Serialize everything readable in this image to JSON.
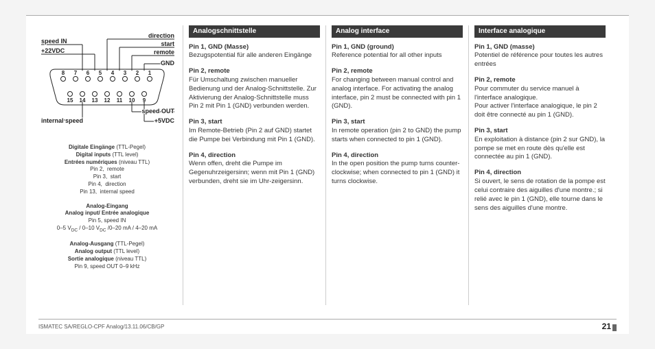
{
  "footer": {
    "ref": "ISMATEC SA/REGLO-CPF Analog/13.11.06/CB/GP",
    "page": "21"
  },
  "diagram": {
    "labels": {
      "speed_in": "speed IN",
      "v22": "+22VDC",
      "direction": "direction",
      "start": "start",
      "remote": "remote",
      "gnd": "GND",
      "speed_out": "speed OUT",
      "v5": "+5VDC",
      "internal_speed": "internal speed"
    },
    "top_pins": [
      "8",
      "7",
      "6",
      "5",
      "4",
      "3",
      "2",
      "1"
    ],
    "bottom_pins": [
      "15",
      "14",
      "13",
      "12",
      "11",
      "10",
      "9"
    ]
  },
  "legend": {
    "digital": {
      "de": "Digitale Eingänge",
      "en": "Digital inputs",
      "fr": "Entrées numériques",
      "de_suffix": "(TTL-Pegel)",
      "en_suffix": "(TTL level)",
      "fr_suffix": "(niveau TTL)",
      "rows": [
        {
          "pin": "Pin 2,",
          "label": "remote"
        },
        {
          "pin": "Pin 3,",
          "label": "start"
        },
        {
          "pin": "Pin 4,",
          "label": "direction"
        },
        {
          "pin": "Pin 13,",
          "label": "internal speed"
        }
      ]
    },
    "analog_in": {
      "de": "Analog-Eingang",
      "en": "Analog input/ Entrée analogique",
      "pin": "Pin 5, speed IN",
      "range": "0–5 V",
      "range2": " / 0–10 V",
      "range3": " /0–20 mA / 4–20 mA",
      "dc": "DC"
    },
    "analog_out": {
      "de": "Analog-Ausgang",
      "en": "Analog output",
      "fr": "Sortie analogique",
      "de_suffix": "(TTL-Pegel)",
      "en_suffix": "(TTL level)",
      "fr_suffix": "(niveau TTL)",
      "pin": "Pin 9, speed OUT 0–9 kHz"
    }
  },
  "columns": [
    {
      "heading": "Analogschnittstelle",
      "pins": [
        {
          "title": "Pin 1, GND (Masse)",
          "body": "Bezugspotential für alle anderen Eingänge"
        },
        {
          "title": "Pin 2, remote",
          "body": "Für Umschaltung zwischen manueller Bedienung und der Analog-Schnittstelle. Zur Aktivierung der Analog-Schnittstelle muss Pin 2 mit Pin 1 (GND) verbunden werden."
        },
        {
          "title": "Pin 3, start",
          "body": "Im Remote-Betrieb (Pin 2 auf GND) startet die Pumpe bei Verbindung mit Pin 1 (GND)."
        },
        {
          "title": "Pin 4, direction",
          "body": "Wenn offen, dreht die Pumpe im Gegenuhrzeigersinn; wenn mit Pin 1 (GND) verbunden, dreht sie im Uhr-zeigersinn."
        }
      ]
    },
    {
      "heading": "Analog interface",
      "pins": [
        {
          "title": "Pin 1, GND (ground)",
          "body": "Reference potential for all other inputs"
        },
        {
          "title": "Pin 2, remote",
          "body": "For changing between manual control and analog interface. For activating the analog interface, pin 2 must be connected with pin 1 (GND)."
        },
        {
          "title": "Pin 3, start",
          "body": "In remote operation (pin 2 to GND) the pump starts when connected to pin 1 (GND)."
        },
        {
          "title": "Pin 4, direction",
          "body": "In the open position the pump turns counter-clockwise; when connected to pin 1 (GND) it turns clockwise."
        }
      ]
    },
    {
      "heading": "Interface analogique",
      "pins": [
        {
          "title": "Pin 1, GND (masse)",
          "body": "Potentiel de référence pour toutes les autres entrées"
        },
        {
          "title": "Pin 2, remote",
          "body": "Pour commuter du service manuel à l'interface analogique.\nPour activer l'interface analogique, le pin 2 doit être connecté au pin 1 (GND)."
        },
        {
          "title": "Pin 3, start",
          "body": "En exploitation à distance (pin 2 sur GND), la pompe se met en route dès qu'elle est connectée au pin 1 (GND)."
        },
        {
          "title": "Pin 4, direction",
          "body": "Si ouvert, le sens de rotation de la pompe est celui contraire des aiguilles d'une montre.; si relié avec le pin 1 (GND), elle tourne dans le sens des aiguilles d'une montre."
        }
      ]
    }
  ]
}
